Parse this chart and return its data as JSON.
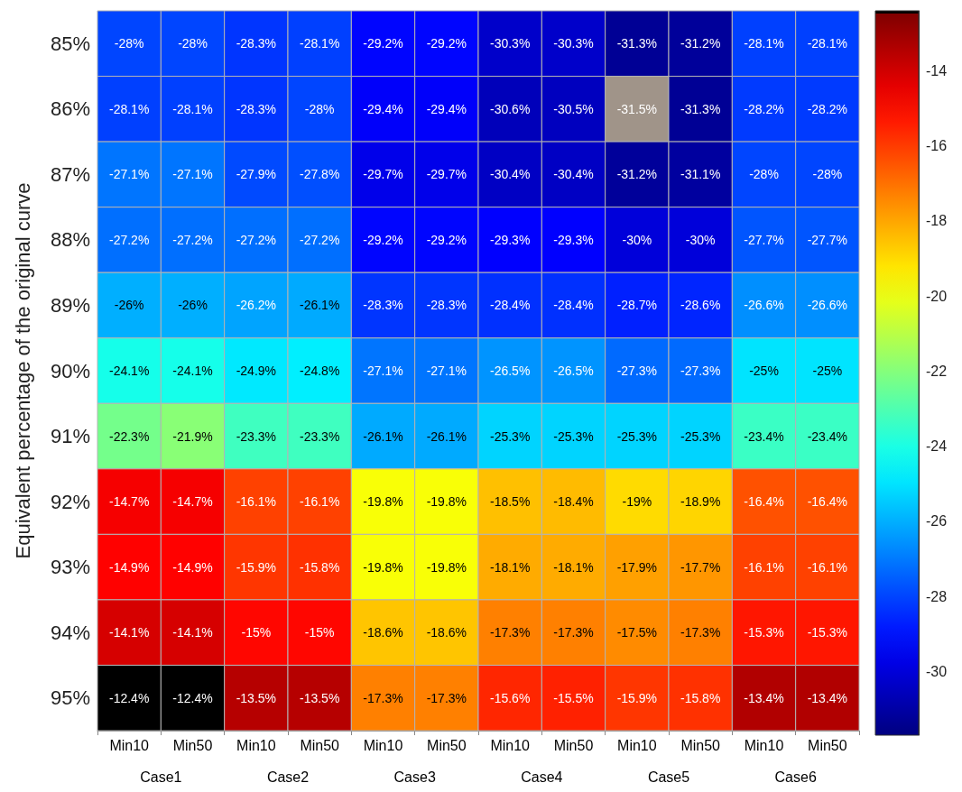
{
  "chart_data": {
    "type": "heatmap",
    "ylabel": "Equivalent percentage of the original curve",
    "categories": [
      "Min10",
      "Min50",
      "Min10",
      "Min50",
      "Min10",
      "Min50",
      "Min10",
      "Min50",
      "Min10",
      "Min50",
      "Min10",
      "Min50"
    ],
    "y_categories": [
      "85%",
      "86%",
      "87%",
      "88%",
      "89%",
      "90%",
      "91%",
      "92%",
      "93%",
      "94%",
      "95%"
    ],
    "cells": [
      [
        -28,
        -28,
        -28.3,
        -28.1,
        -29.2,
        -29.2,
        -30.3,
        -30.3,
        -31.3,
        -31.2,
        -28.1,
        -28.1
      ],
      [
        -28.1,
        -28.1,
        -28.3,
        -28,
        -29.4,
        -29.4,
        -30.6,
        -30.5,
        null,
        -31.3,
        -28.2,
        -28.2
      ],
      [
        -27.1,
        -27.1,
        -27.9,
        -27.8,
        -29.7,
        -29.7,
        -30.4,
        -30.4,
        -31.2,
        -31.1,
        -28,
        -28
      ],
      [
        -27.2,
        -27.2,
        -27.2,
        -27.2,
        -29.2,
        -29.2,
        -29.3,
        -29.3,
        -30,
        -30,
        -27.7,
        -27.7
      ],
      [
        -26,
        -26,
        -26.2,
        -26.1,
        -28.3,
        -28.3,
        -28.4,
        -28.4,
        -28.7,
        -28.6,
        -26.6,
        -26.6
      ],
      [
        -24.1,
        -24.1,
        -24.9,
        -24.8,
        -27.1,
        -27.1,
        -26.5,
        -26.5,
        -27.3,
        -27.3,
        -25,
        -25
      ],
      [
        -22.3,
        -21.9,
        -23.3,
        -23.3,
        -26.1,
        -26.1,
        -25.3,
        -25.3,
        -25.3,
        -25.3,
        -23.4,
        -23.4
      ],
      [
        -14.7,
        -14.7,
        -16.1,
        -16.1,
        -19.8,
        -19.8,
        -18.5,
        -18.4,
        -19,
        -18.9,
        -16.4,
        -16.4
      ],
      [
        -14.9,
        -14.9,
        -15.9,
        -15.8,
        -19.8,
        -19.8,
        -18.1,
        -18.1,
        -17.9,
        -17.7,
        -16.1,
        -16.1
      ],
      [
        -14.1,
        -14.1,
        -15,
        -15,
        -18.6,
        -18.6,
        -17.3,
        -17.3,
        -17.5,
        -17.3,
        -15.3,
        -15.3
      ],
      [
        -12.4,
        -12.4,
        -13.5,
        -13.5,
        -17.3,
        -17.3,
        -15.6,
        -15.5,
        -15.9,
        -15.8,
        -13.4,
        -13.4
      ]
    ],
    "cell_labels": [
      [
        "-28%",
        "-28%",
        "-28.3%",
        "-28.1%",
        "-29.2%",
        "-29.2%",
        "-30.3%",
        "-30.3%",
        "-31.3%",
        "-31.2%",
        "-28.1%",
        "-28.1%"
      ],
      [
        "-28.1%",
        "-28.1%",
        "-28.3%",
        "-28%",
        "-29.4%",
        "-29.4%",
        "-30.6%",
        "-30.5%",
        "-31.5%",
        "-31.3%",
        "-28.2%",
        "-28.2%"
      ],
      [
        "-27.1%",
        "-27.1%",
        "-27.9%",
        "-27.8%",
        "-29.7%",
        "-29.7%",
        "-30.4%",
        "-30.4%",
        "-31.2%",
        "-31.1%",
        "-28%",
        "-28%"
      ],
      [
        "-27.2%",
        "-27.2%",
        "-27.2%",
        "-27.2%",
        "-29.2%",
        "-29.2%",
        "-29.3%",
        "-29.3%",
        "-30%",
        "-30%",
        "-27.7%",
        "-27.7%"
      ],
      [
        "-26%",
        "-26%",
        "-26.2%",
        "-26.1%",
        "-28.3%",
        "-28.3%",
        "-28.4%",
        "-28.4%",
        "-28.7%",
        "-28.6%",
        "-26.6%",
        "-26.6%"
      ],
      [
        "-24.1%",
        "-24.1%",
        "-24.9%",
        "-24.8%",
        "-27.1%",
        "-27.1%",
        "-26.5%",
        "-26.5%",
        "-27.3%",
        "-27.3%",
        "-25%",
        "-25%"
      ],
      [
        "-22.3%",
        "-21.9%",
        "-23.3%",
        "-23.3%",
        "-26.1%",
        "-26.1%",
        "-25.3%",
        "-25.3%",
        "-25.3%",
        "-25.3%",
        "-23.4%",
        "-23.4%"
      ],
      [
        "-14.7%",
        "-14.7%",
        "-16.1%",
        "-16.1%",
        "-19.8%",
        "-19.8%",
        "-18.5%",
        "-18.4%",
        "-19%",
        "-18.9%",
        "-16.4%",
        "-16.4%"
      ],
      [
        "-14.9%",
        "-14.9%",
        "-15.9%",
        "-15.8%",
        "-19.8%",
        "-19.8%",
        "-18.1%",
        "-18.1%",
        "-17.9%",
        "-17.7%",
        "-16.1%",
        "-16.1%"
      ],
      [
        "-14.1%",
        "-14.1%",
        "-15%",
        "-15%",
        "-18.6%",
        "-18.6%",
        "-17.3%",
        "-17.3%",
        "-17.5%",
        "-17.3%",
        "-15.3%",
        "-15.3%"
      ],
      [
        "-12.4%",
        "-12.4%",
        "-13.5%",
        "-13.5%",
        "-17.3%",
        "-17.3%",
        "-15.6%",
        "-15.5%",
        "-15.9%",
        "-15.8%",
        "-13.4%",
        "-13.4%"
      ]
    ],
    "clim": [
      -31.7,
      -12.4
    ],
    "cticks": [
      -30,
      -28,
      -26,
      -24,
      -22,
      -20,
      -18,
      -16,
      -14
    ],
    "annotations": [
      "Case1",
      "Case2",
      "Case3",
      "Case4",
      "Case5",
      "Case6"
    ]
  }
}
